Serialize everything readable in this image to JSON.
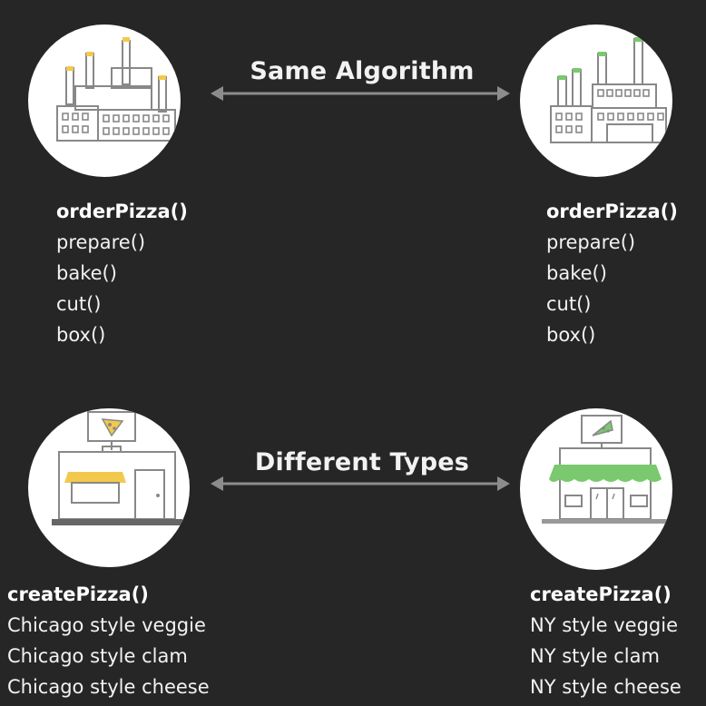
{
  "top_arrow_label": "Same Algorithm",
  "bottom_arrow_label": "Different Types",
  "left_algorithm": {
    "title": "orderPizza()",
    "steps": [
      "prepare()",
      "bake()",
      "cut()",
      "box()"
    ]
  },
  "right_algorithm": {
    "title": "orderPizza()",
    "steps": [
      "prepare()",
      "bake()",
      "cut()",
      "box()"
    ]
  },
  "left_types": {
    "title": "createPizza()",
    "items": [
      "Chicago style veggie",
      "Chicago style clam",
      "Chicago style cheese"
    ]
  },
  "right_types": {
    "title": "createPizza()",
    "items": [
      "NY style veggie",
      "NY style clam",
      "NY style cheese"
    ]
  },
  "colors": {
    "background": "#262626",
    "chicago_accent": "#f2c94c",
    "ny_accent": "#7ac96e",
    "arrow": "#8c8c8c",
    "line_art": "#888888"
  },
  "icons": {
    "top_left": "chicago-factory-icon",
    "top_right": "ny-factory-icon",
    "bottom_left": "chicago-pizza-store-icon",
    "bottom_right": "ny-pizza-store-icon"
  }
}
